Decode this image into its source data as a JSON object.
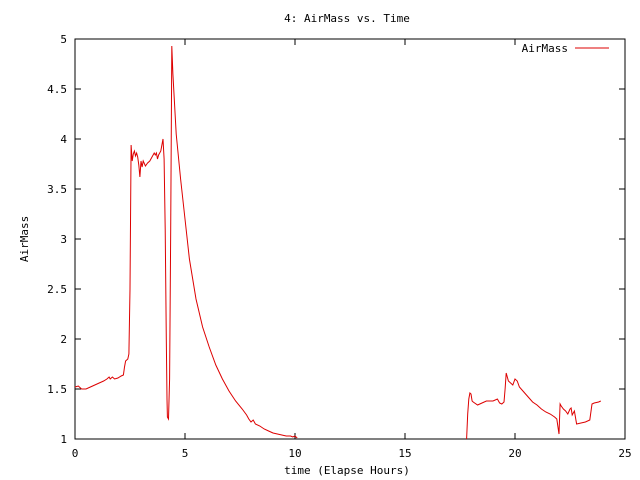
{
  "chart_data": {
    "type": "line",
    "title": "4: AirMass vs. Time",
    "xlabel": "time (Elapse Hours)",
    "ylabel": "AirMass",
    "xlim": [
      0,
      25
    ],
    "ylim": [
      1,
      5
    ],
    "x_ticks": [
      0,
      5,
      10,
      15,
      20,
      25
    ],
    "y_ticks": [
      1,
      1.5,
      2,
      2.5,
      3,
      3.5,
      4,
      4.5,
      5
    ],
    "grid": false,
    "legend_position": "top-right",
    "colors": {
      "series": "#dd0000",
      "axes": "#000000"
    },
    "series": [
      {
        "name": "AirMass",
        "segments": [
          [
            [
              0.0,
              1.52
            ],
            [
              0.15,
              1.53
            ],
            [
              0.3,
              1.5
            ],
            [
              0.5,
              1.5
            ],
            [
              0.7,
              1.52
            ],
            [
              0.9,
              1.54
            ],
            [
              1.1,
              1.56
            ],
            [
              1.3,
              1.58
            ],
            [
              1.45,
              1.6
            ],
            [
              1.55,
              1.62
            ],
            [
              1.6,
              1.6
            ],
            [
              1.7,
              1.62
            ],
            [
              1.8,
              1.6
            ],
            [
              1.95,
              1.61
            ],
            [
              2.1,
              1.63
            ],
            [
              2.2,
              1.64
            ],
            [
              2.25,
              1.72
            ],
            [
              2.3,
              1.78
            ],
            [
              2.4,
              1.8
            ],
            [
              2.45,
              1.85
            ],
            [
              2.5,
              2.5
            ],
            [
              2.55,
              3.94
            ],
            [
              2.6,
              3.78
            ],
            [
              2.65,
              3.85
            ],
            [
              2.7,
              3.88
            ],
            [
              2.75,
              3.83
            ],
            [
              2.8,
              3.86
            ],
            [
              2.85,
              3.82
            ],
            [
              2.9,
              3.74
            ],
            [
              2.95,
              3.62
            ],
            [
              3.0,
              3.78
            ],
            [
              3.05,
              3.72
            ],
            [
              3.1,
              3.78
            ],
            [
              3.2,
              3.73
            ],
            [
              3.3,
              3.76
            ],
            [
              3.4,
              3.78
            ],
            [
              3.5,
              3.82
            ],
            [
              3.6,
              3.86
            ],
            [
              3.65,
              3.84
            ],
            [
              3.7,
              3.86
            ],
            [
              3.75,
              3.8
            ],
            [
              3.8,
              3.84
            ],
            [
              3.9,
              3.88
            ],
            [
              3.95,
              3.94
            ],
            [
              4.0,
              4.0
            ],
            [
              4.05,
              3.8
            ],
            [
              4.1,
              3.1
            ],
            [
              4.15,
              2.0
            ],
            [
              4.18,
              1.4
            ],
            [
              4.2,
              1.22
            ],
            [
              4.25,
              1.2
            ],
            [
              4.3,
              1.6
            ],
            [
              4.35,
              3.1
            ],
            [
              4.4,
              4.93
            ],
            [
              4.45,
              4.65
            ],
            [
              4.5,
              4.45
            ],
            [
              4.6,
              4.05
            ],
            [
              4.8,
              3.6
            ],
            [
              5.0,
              3.2
            ],
            [
              5.2,
              2.8
            ],
            [
              5.5,
              2.4
            ],
            [
              5.8,
              2.12
            ],
            [
              6.1,
              1.92
            ],
            [
              6.4,
              1.74
            ],
            [
              6.7,
              1.6
            ],
            [
              7.0,
              1.48
            ],
            [
              7.3,
              1.38
            ],
            [
              7.6,
              1.3
            ],
            [
              7.8,
              1.24
            ],
            [
              7.9,
              1.2
            ],
            [
              8.0,
              1.17
            ],
            [
              8.1,
              1.19
            ],
            [
              8.2,
              1.15
            ],
            [
              8.4,
              1.13
            ],
            [
              8.6,
              1.1
            ],
            [
              8.8,
              1.08
            ],
            [
              9.0,
              1.06
            ],
            [
              9.2,
              1.05
            ],
            [
              9.4,
              1.04
            ],
            [
              9.6,
              1.03
            ],
            [
              9.8,
              1.03
            ],
            [
              9.9,
              1.02
            ],
            [
              10.0,
              1.03
            ],
            [
              10.05,
              1.02
            ],
            [
              10.1,
              1.01
            ]
          ],
          [
            [
              17.8,
              1.0
            ],
            [
              17.85,
              1.25
            ],
            [
              17.9,
              1.4
            ],
            [
              17.95,
              1.46
            ],
            [
              18.0,
              1.45
            ],
            [
              18.05,
              1.38
            ],
            [
              18.1,
              1.37
            ],
            [
              18.3,
              1.34
            ],
            [
              18.5,
              1.36
            ],
            [
              18.7,
              1.38
            ],
            [
              19.0,
              1.38
            ],
            [
              19.2,
              1.4
            ],
            [
              19.3,
              1.36
            ],
            [
              19.4,
              1.35
            ],
            [
              19.5,
              1.37
            ],
            [
              19.55,
              1.5
            ],
            [
              19.6,
              1.66
            ],
            [
              19.7,
              1.58
            ],
            [
              19.8,
              1.56
            ],
            [
              19.9,
              1.54
            ],
            [
              20.0,
              1.6
            ],
            [
              20.1,
              1.58
            ],
            [
              20.2,
              1.52
            ],
            [
              20.4,
              1.47
            ],
            [
              20.6,
              1.42
            ],
            [
              20.8,
              1.37
            ],
            [
              21.0,
              1.34
            ],
            [
              21.2,
              1.3
            ],
            [
              21.4,
              1.27
            ],
            [
              21.6,
              1.25
            ],
            [
              21.8,
              1.22
            ],
            [
              21.9,
              1.2
            ],
            [
              22.0,
              1.05
            ],
            [
              22.05,
              1.35
            ],
            [
              22.1,
              1.33
            ],
            [
              22.2,
              1.3
            ],
            [
              22.3,
              1.28
            ],
            [
              22.4,
              1.25
            ],
            [
              22.5,
              1.3
            ],
            [
              22.55,
              1.31
            ],
            [
              22.6,
              1.24
            ],
            [
              22.7,
              1.28
            ],
            [
              22.8,
              1.15
            ],
            [
              23.0,
              1.16
            ],
            [
              23.2,
              1.17
            ],
            [
              23.4,
              1.19
            ],
            [
              23.5,
              1.35
            ],
            [
              23.6,
              1.36
            ],
            [
              23.8,
              1.37
            ],
            [
              23.9,
              1.38
            ]
          ]
        ]
      }
    ]
  }
}
